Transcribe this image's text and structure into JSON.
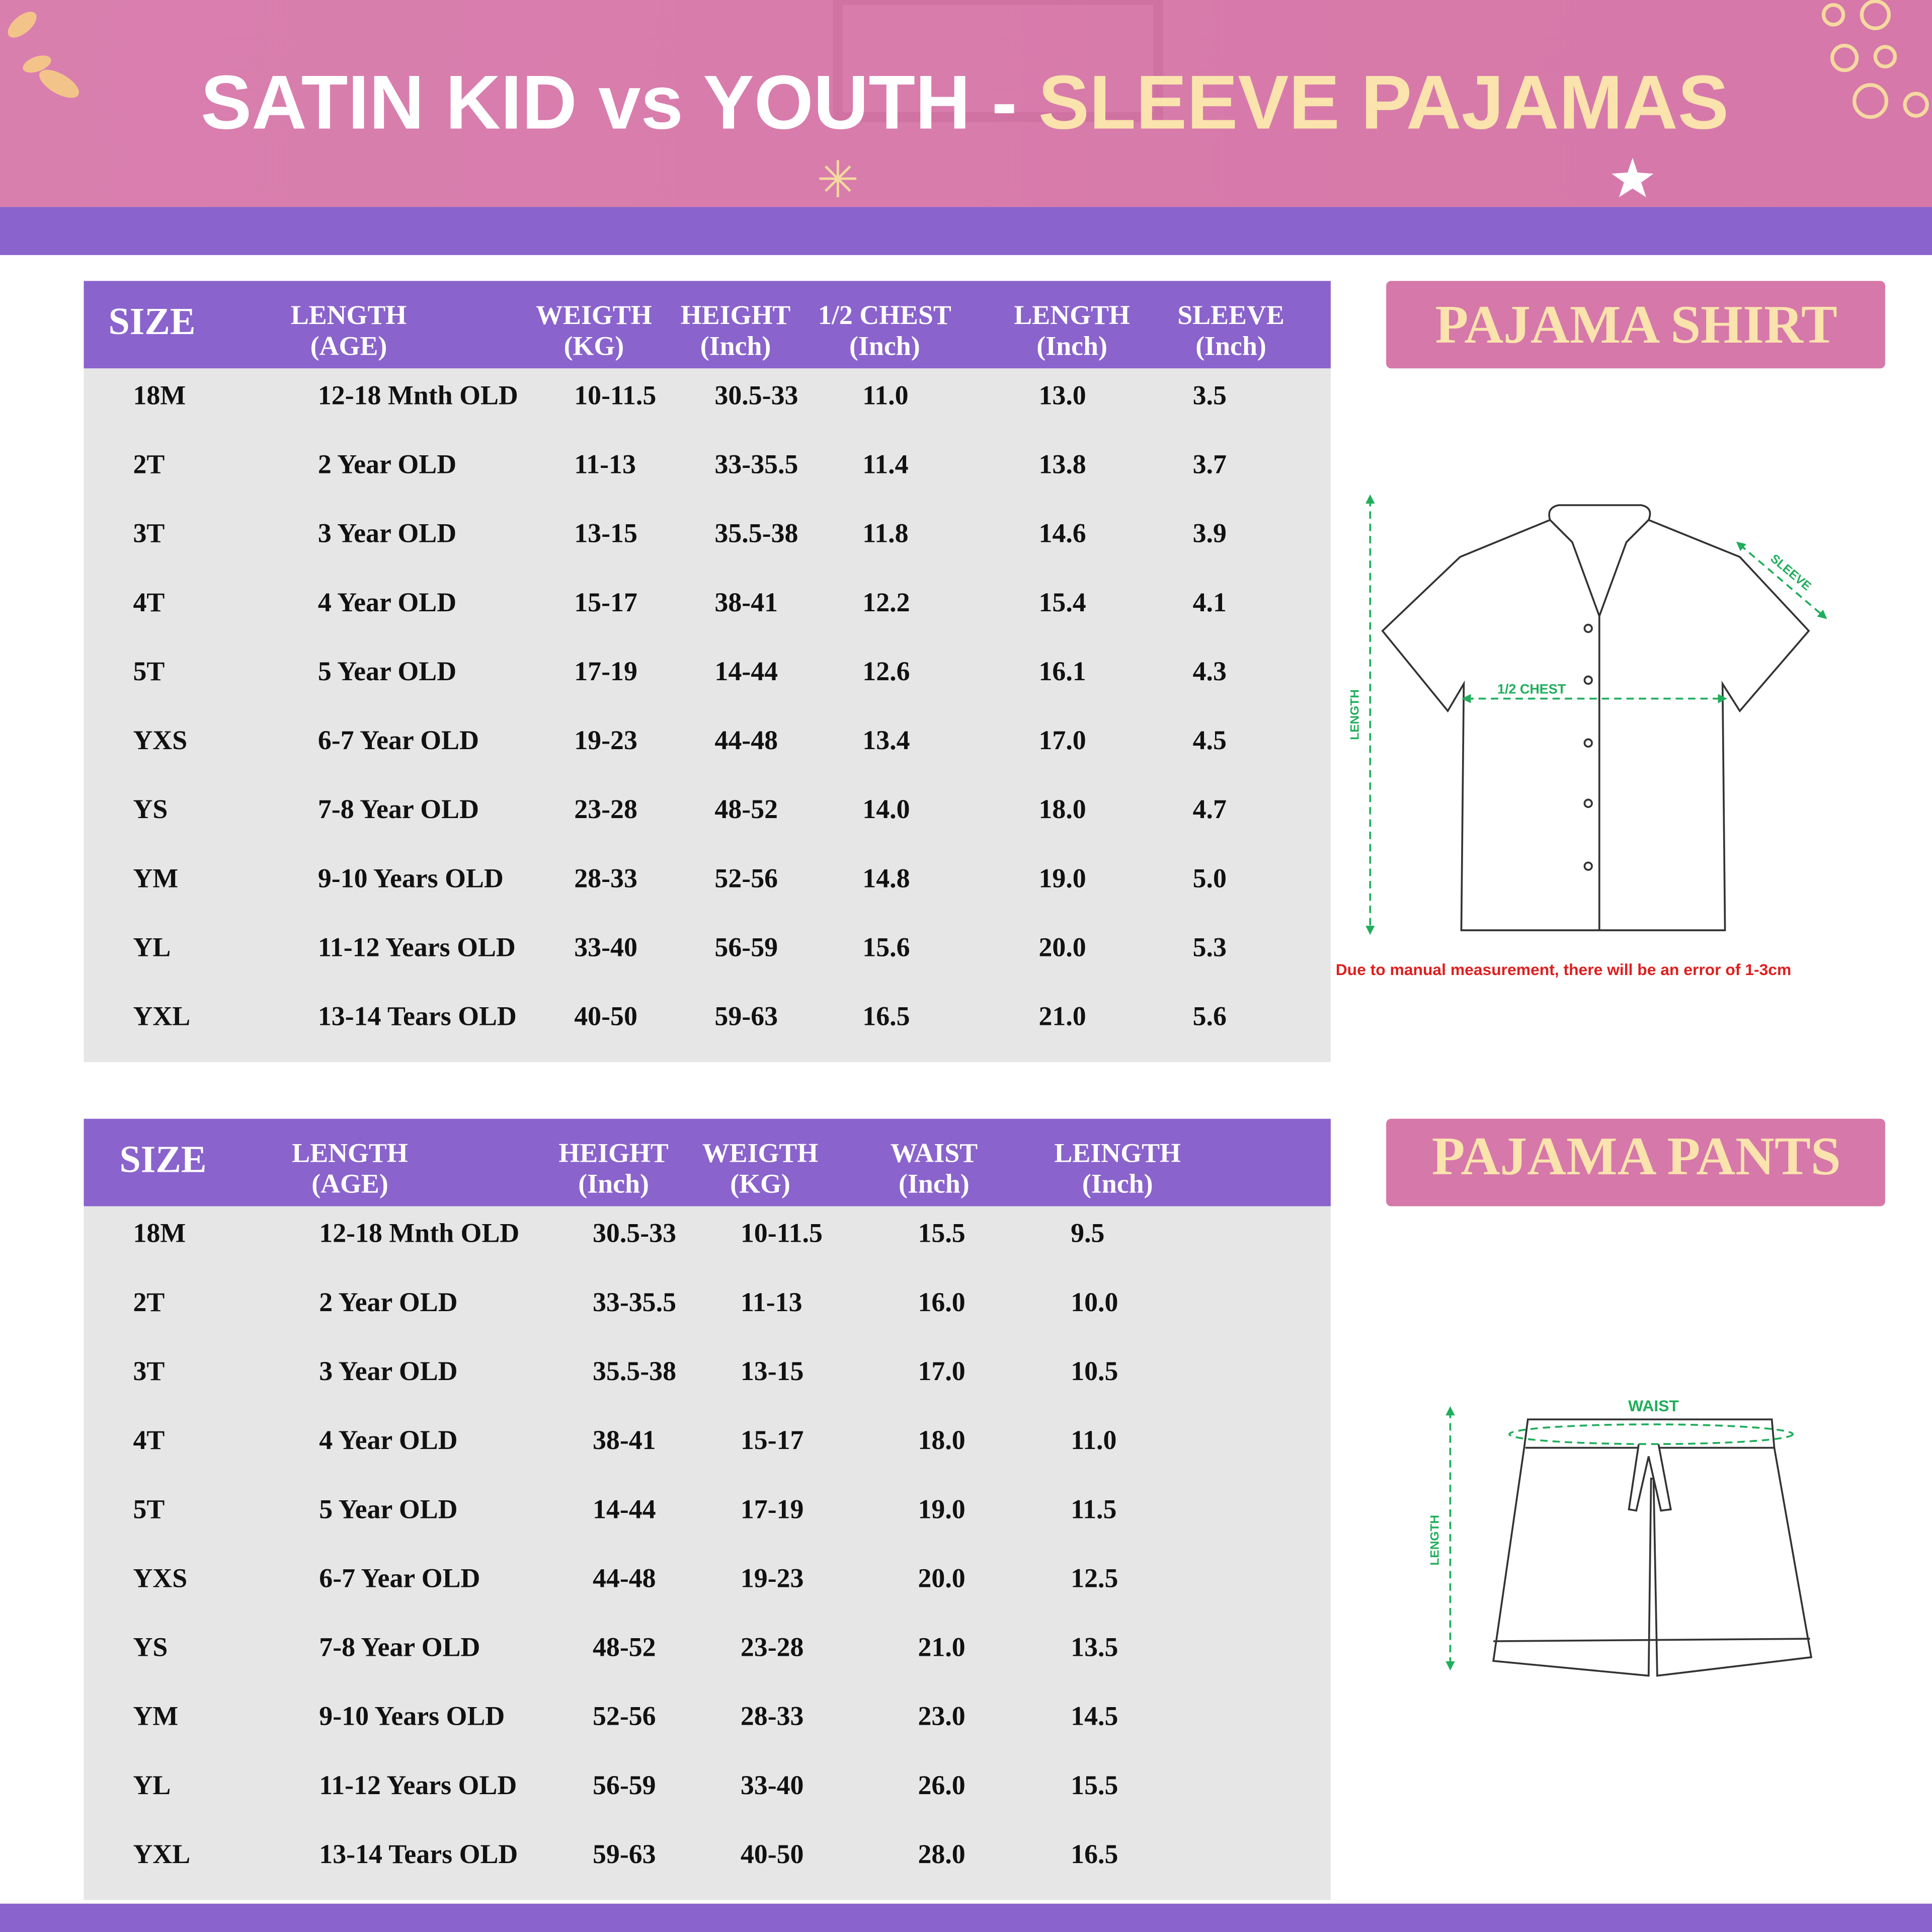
{
  "header": {
    "title_main": "SATIN KID vs YOUTH - ",
    "title_accent": "SLEEVE PAJAMAS"
  },
  "shirt": {
    "label": "PAJAMA SHIRT",
    "headers": [
      [
        "SIZE"
      ],
      [
        "LENGTH",
        "(AGE)"
      ],
      [
        "WEIGTH",
        "(KG)"
      ],
      [
        "HEIGHT",
        "(Inch)"
      ],
      [
        "1/2 CHEST",
        "(Inch)"
      ],
      [
        "LENGTH",
        "(Inch)"
      ],
      [
        "SLEEVE",
        "(Inch)"
      ]
    ],
    "rows": [
      [
        "18M",
        "12-18 Mnth OLD",
        "10-11.5",
        "30.5-33",
        "11.0",
        "13.0",
        "3.5"
      ],
      [
        "2T",
        "2 Year OLD",
        "11-13",
        "33-35.5",
        "11.4",
        "13.8",
        "3.7"
      ],
      [
        "3T",
        "3 Year OLD",
        "13-15",
        "35.5-38",
        "11.8",
        "14.6",
        "3.9"
      ],
      [
        "4T",
        "4 Year OLD",
        "15-17",
        "38-41",
        "12.2",
        "15.4",
        "4.1"
      ],
      [
        "5T",
        "5 Year OLD",
        "17-19",
        "14-44",
        "12.6",
        "16.1",
        "4.3"
      ],
      [
        "YXS",
        "6-7 Year OLD",
        "19-23",
        "44-48",
        "13.4",
        "17.0",
        "4.5"
      ],
      [
        "YS",
        "7-8 Year OLD",
        "23-28",
        "48-52",
        "14.0",
        "18.0",
        "4.7"
      ],
      [
        "YM",
        "9-10 Years OLD",
        "28-33",
        "52-56",
        "14.8",
        "19.0",
        "5.0"
      ],
      [
        "YL",
        "11-12 Years OLD",
        "33-40",
        "56-59",
        "15.6",
        "20.0",
        "5.3"
      ],
      [
        "YXL",
        "13-14 Tears OLD",
        "40-50",
        "59-63",
        "16.5",
        "21.0",
        "5.6"
      ]
    ],
    "diagram": {
      "sleeve": "SLEEVE",
      "chest": "1/2 CHEST",
      "length": "LENGTH"
    },
    "note": "Due to manual measurement, there will be an error of 1-3cm"
  },
  "pants": {
    "label": "PAJAMA PANTS",
    "headers": [
      [
        "SIZE"
      ],
      [
        "LENGTH",
        "(AGE)"
      ],
      [
        "HEIGHT",
        "(Inch)"
      ],
      [
        "WEIGTH",
        "(KG)"
      ],
      [
        "WAIST",
        "(Inch)"
      ],
      [
        "LEINGTH",
        "(Inch)"
      ]
    ],
    "rows": [
      [
        "18M",
        "12-18 Mnth OLD",
        "30.5-33",
        "10-11.5",
        "15.5",
        "9.5"
      ],
      [
        "2T",
        "2 Year OLD",
        "33-35.5",
        "11-13",
        "16.0",
        "10.0"
      ],
      [
        "3T",
        "3 Year OLD",
        "35.5-38",
        "13-15",
        "17.0",
        "10.5"
      ],
      [
        "4T",
        "4 Year OLD",
        "38-41",
        "15-17",
        "18.0",
        "11.0"
      ],
      [
        "5T",
        "5 Year OLD",
        "14-44",
        "17-19",
        "19.0",
        "11.5"
      ],
      [
        "YXS",
        "6-7 Year OLD",
        "44-48",
        "19-23",
        "20.0",
        "12.5"
      ],
      [
        "YS",
        "7-8 Year OLD",
        "48-52",
        "23-28",
        "21.0",
        "13.5"
      ],
      [
        "YM",
        "9-10 Years OLD",
        "52-56",
        "28-33",
        "23.0",
        "14.5"
      ],
      [
        "YL",
        "11-12 Years OLD",
        "56-59",
        "33-40",
        "26.0",
        "15.5"
      ],
      [
        "YXL",
        "13-14 Tears OLD",
        "59-63",
        "40-50",
        "28.0",
        "16.5"
      ]
    ],
    "diagram": {
      "waist": "WAIST",
      "length": "LENGTH"
    }
  }
}
